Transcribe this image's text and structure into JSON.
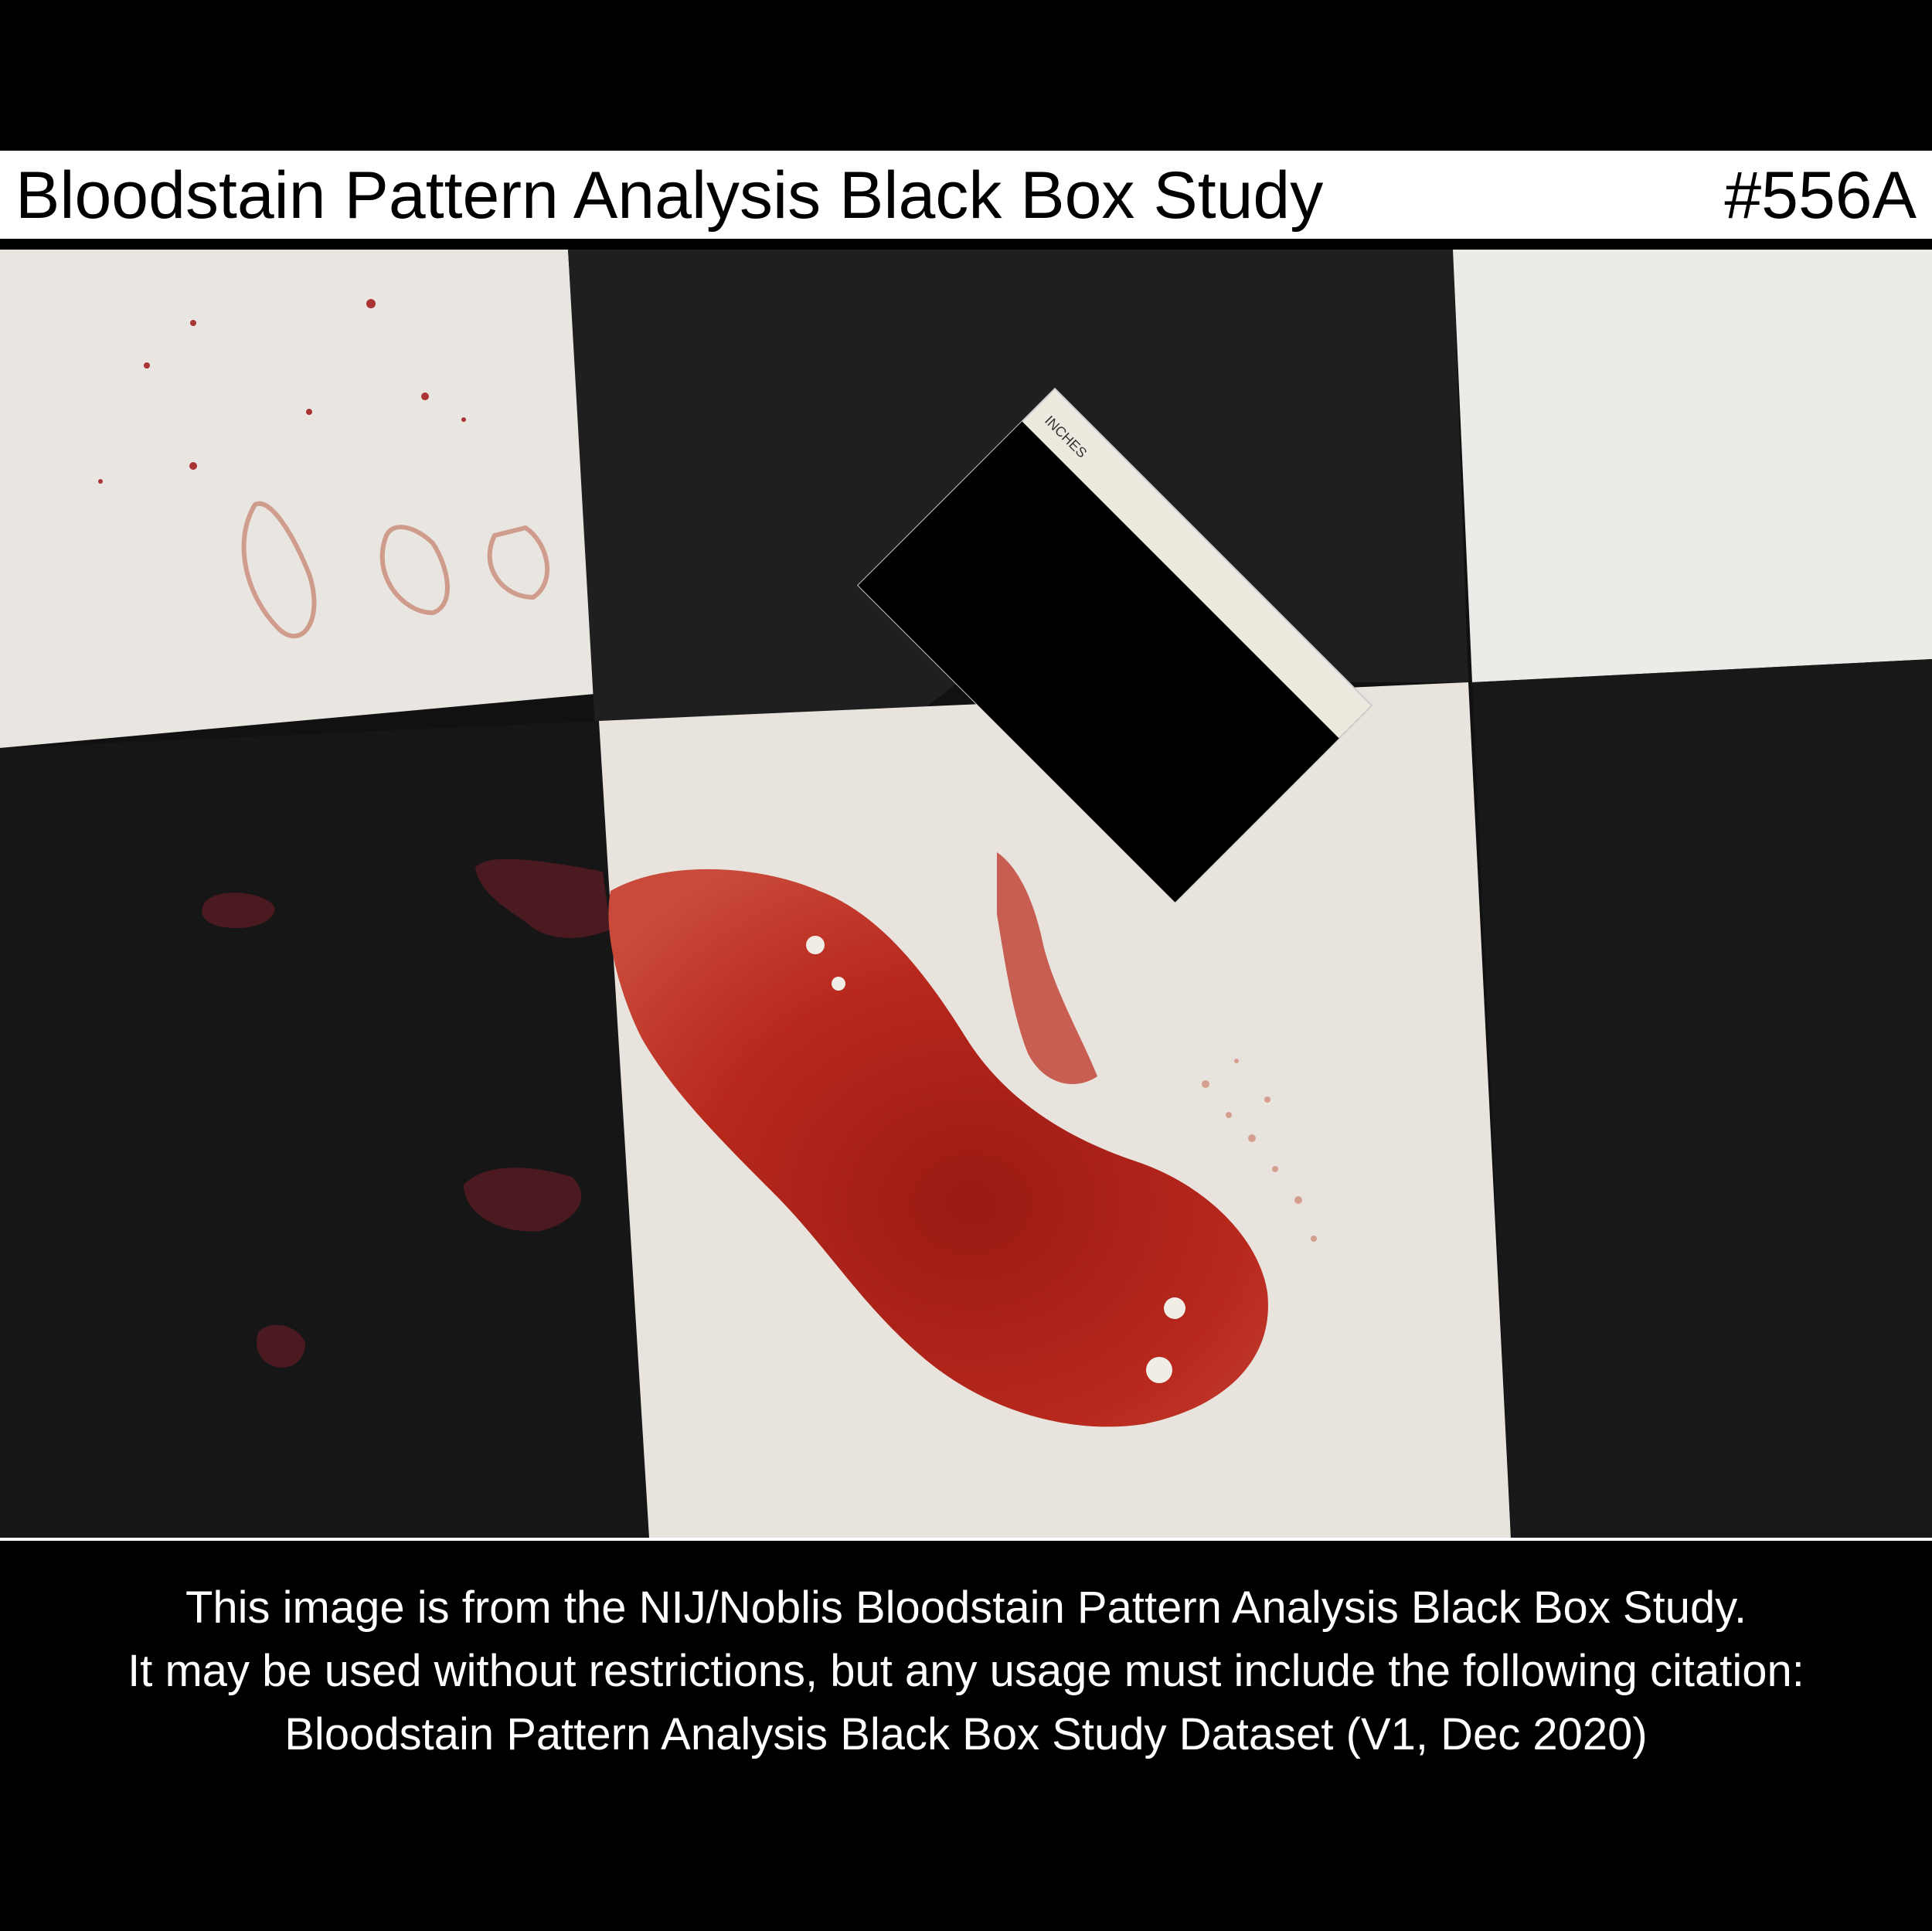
{
  "header": {
    "title": "Bloodstain Pattern Analysis Black Box Study",
    "case_id": "#556A"
  },
  "photo": {
    "scale_label": "INCHES"
  },
  "footer": {
    "line1": "This image is from the NIJ/Noblis Bloodstain Pattern Analysis Black Box Study.",
    "line2": "It may be used without restrictions, but any usage must include the following citation:",
    "line3": "Bloodstain Pattern Analysis Black Box Study Dataset (V1, Dec 2020)"
  },
  "colors": {
    "background": "#000000",
    "tile_light": "#ebe8e3",
    "tile_dark": "#1a1a1a",
    "blood": "#b3221a",
    "blood_dark": "#5a1d22"
  }
}
